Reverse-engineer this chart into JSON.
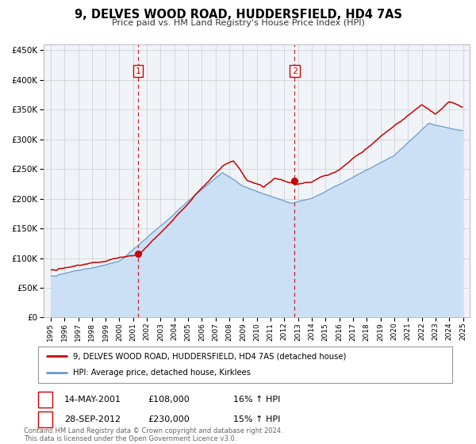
{
  "title": "9, DELVES WOOD ROAD, HUDDERSFIELD, HD4 7AS",
  "subtitle": "Price paid vs. HM Land Registry's House Price Index (HPI)",
  "legend_line1": "9, DELVES WOOD ROAD, HUDDERSFIELD, HD4 7AS (detached house)",
  "legend_line2": "HPI: Average price, detached house, Kirklees",
  "annotation1_label": "1",
  "annotation1_date": "14-MAY-2001",
  "annotation1_price": "£108,000",
  "annotation1_hpi": "16% ↑ HPI",
  "annotation2_label": "2",
  "annotation2_date": "28-SEP-2012",
  "annotation2_price": "£230,000",
  "annotation2_hpi": "15% ↑ HPI",
  "footer1": "Contains HM Land Registry data © Crown copyright and database right 2024.",
  "footer2": "This data is licensed under the Open Government Licence v3.0.",
  "price_color": "#cc0000",
  "hpi_color": "#6699cc",
  "hpi_fill_color": "#cce0f5",
  "background_color": "#f0f4f8",
  "grid_color": "#cccccc",
  "vline_color": "#cc0000",
  "point1_x": 2001.37,
  "point1_y": 108000,
  "point2_x": 2012.75,
  "point2_y": 230000,
  "ylim": [
    0,
    460000
  ],
  "xlim": [
    1994.5,
    2025.5
  ]
}
